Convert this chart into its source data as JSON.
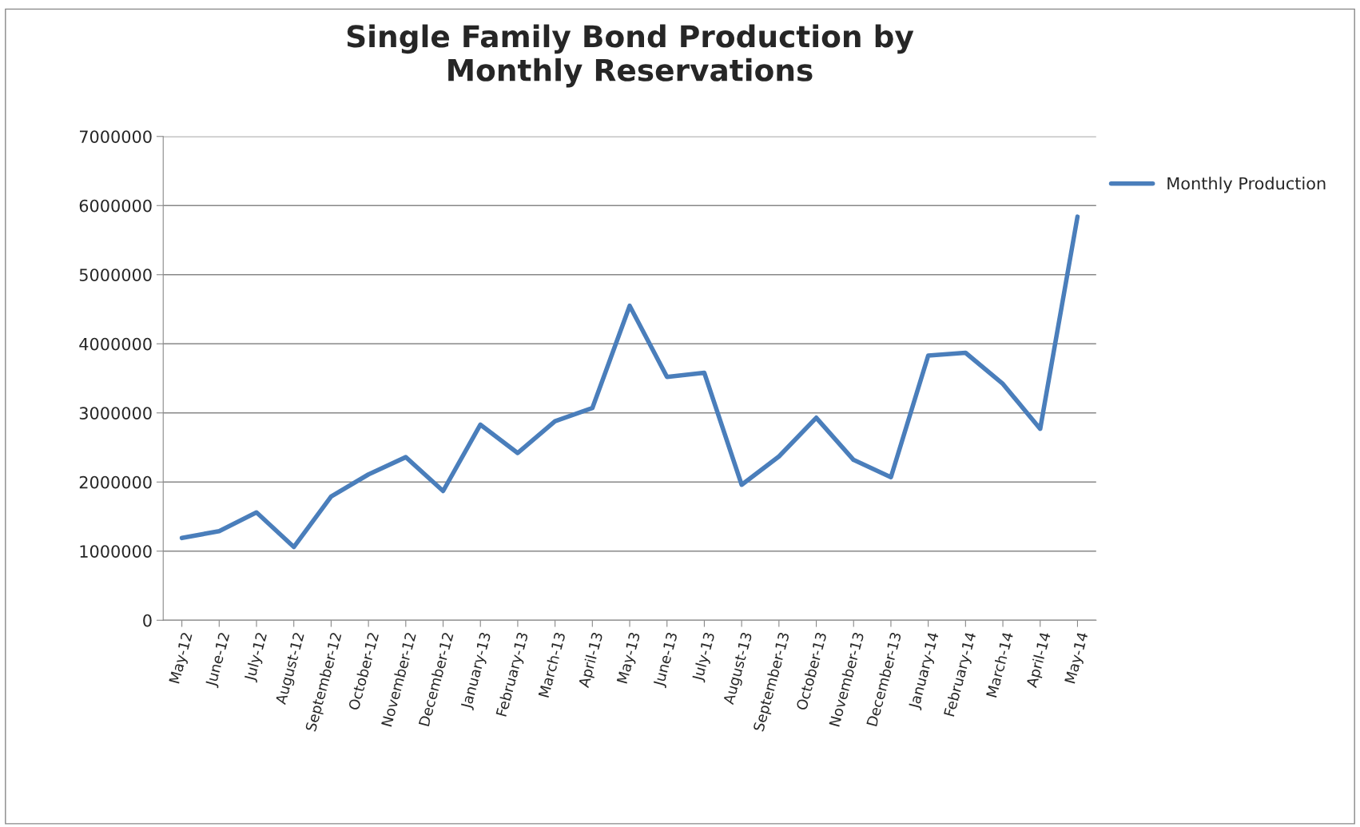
{
  "chart_data": {
    "type": "line",
    "title": "Single Family Bond Production by\nMonthly Reservations",
    "categories": [
      "May-12",
      "June-12",
      "July-12",
      "August-12",
      "September-12",
      "October-12",
      "November-12",
      "December-12",
      "January-13",
      "February-13",
      "March-13",
      "April-13",
      "May-13",
      "June-13",
      "July-13",
      "August-13",
      "September-13",
      "October-13",
      "November-13",
      "December-13",
      "January-14",
      "February-14",
      "March-14",
      "April-14",
      "May-14"
    ],
    "series": [
      {
        "name": "Monthly Production",
        "color": "#4a7ebb",
        "values": [
          1190000,
          1290000,
          1560000,
          1060000,
          1790000,
          2110000,
          2360000,
          1870000,
          2830000,
          2420000,
          2880000,
          3070000,
          4550000,
          3520000,
          3580000,
          1960000,
          2370000,
          2930000,
          2320000,
          2070000,
          3830000,
          3870000,
          3420000,
          2770000,
          5840000
        ]
      }
    ],
    "ylim": [
      0,
      7000000
    ],
    "yticks": [
      0,
      1000000,
      2000000,
      3000000,
      4000000,
      5000000,
      6000000,
      7000000
    ],
    "grid": "y",
    "legend": "right",
    "marker": "none",
    "line_style": "solid"
  }
}
